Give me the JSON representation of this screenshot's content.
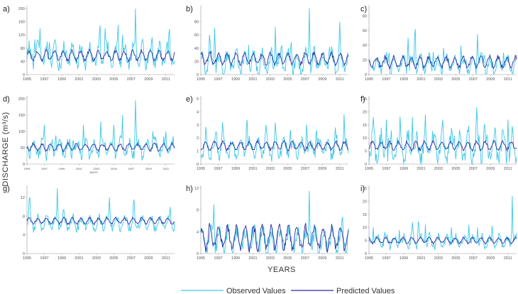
{
  "figure": {
    "ylabel": "DISCHARGE (m³/s)",
    "xlabel": "YEARS",
    "legend": [
      {
        "name": "Observed Values",
        "color": "#3cc8e8"
      },
      {
        "name": "Predicted Values",
        "color": "#2a2a9c"
      }
    ]
  },
  "chart_data": [
    {
      "type": "line",
      "label": "a)",
      "ylim": [
        0,
        200
      ],
      "yticks": [
        0,
        40,
        80,
        120,
        160,
        200
      ],
      "xticks": [
        "1995",
        "1997",
        "1999",
        "2001",
        "2003",
        "2005",
        "2007",
        "2009",
        "2011"
      ],
      "observed": {
        "base": 55,
        "amp": 28,
        "peaks": [
          [
            1995.9,
            120
          ],
          [
            1996.5,
            140
          ],
          [
            1997.6,
            110
          ],
          [
            2000.3,
            95
          ],
          [
            2003.4,
            160
          ],
          [
            2004.0,
            140
          ],
          [
            2005.5,
            150
          ],
          [
            2006.0,
            120
          ],
          [
            2007.5,
            200
          ],
          [
            2008.3,
            110
          ],
          [
            2009.4,
            120
          ],
          [
            2011.4,
            150
          ]
        ]
      },
      "predicted": {
        "base": 58,
        "amp": 14
      }
    },
    {
      "type": "line",
      "label": "b)",
      "ylim": [
        0,
        100
      ],
      "yticks": [
        0,
        20,
        40,
        60,
        80
      ],
      "xticks": [
        "1995",
        "1997",
        "1999",
        "2001",
        "2003",
        "2005",
        "2007",
        "2009",
        "2011"
      ],
      "observed": {
        "base": 18,
        "amp": 14,
        "peaks": [
          [
            1996.0,
            60
          ],
          [
            1996.6,
            80
          ],
          [
            2000.5,
            45
          ],
          [
            2003.6,
            85
          ],
          [
            2004.3,
            50
          ],
          [
            2005.4,
            55
          ],
          [
            2007.5,
            100
          ],
          [
            2009.8,
            55
          ],
          [
            2011.0,
            80
          ]
        ]
      },
      "predicted": {
        "base": 24,
        "amp": 8
      }
    },
    {
      "type": "line",
      "label": "c)",
      "ylim": [
        0,
        90
      ],
      "yticks": [
        0,
        20,
        40,
        60,
        80
      ],
      "xticks": [
        "1995",
        "1997",
        "1999",
        "2001",
        "2003",
        "2005",
        "2007",
        "2009",
        "2011"
      ],
      "observed": {
        "base": 14,
        "amp": 10,
        "peaks": [
          [
            1997.3,
            40
          ],
          [
            1999.5,
            50
          ],
          [
            2000.3,
            85
          ],
          [
            2002.4,
            35
          ],
          [
            2003.6,
            40
          ],
          [
            2005.6,
            45
          ],
          [
            2007.5,
            55
          ],
          [
            2008.3,
            35
          ],
          [
            2010.5,
            30
          ]
        ]
      },
      "predicted": {
        "base": 17,
        "amp": 7
      }
    },
    {
      "type": "line",
      "label": "d)",
      "ylim": [
        0,
        200
      ],
      "yticks": [
        0,
        50,
        100,
        150,
        200
      ],
      "xticks": [
        "1995",
        "1997",
        "1999",
        "2001",
        "2003",
        "2005",
        "2007",
        "2009",
        "2011"
      ],
      "xlabel": "ANOS",
      "observed": {
        "base": 48,
        "amp": 22,
        "peaks": [
          [
            1997.0,
            120
          ],
          [
            1998.3,
            110
          ],
          [
            2000.3,
            95
          ],
          [
            2001.5,
            120
          ],
          [
            2003.5,
            130
          ],
          [
            2005.0,
            120
          ],
          [
            2006.0,
            150
          ],
          [
            2007.5,
            195
          ],
          [
            2009.5,
            100
          ],
          [
            2011.0,
            100
          ]
        ]
      },
      "predicted": {
        "base": 52,
        "amp": 10
      }
    },
    {
      "type": "line",
      "label": "e)",
      "ylim": [
        0,
        5
      ],
      "yticks": [
        0,
        1,
        2,
        3,
        4,
        5
      ],
      "xticks": [
        "1995",
        "1997",
        "1999",
        "2001",
        "2003",
        "2005",
        "2007",
        "2009",
        "2011"
      ],
      "observed": {
        "base": 1.2,
        "amp": 0.6,
        "peaks": [
          [
            1995.6,
            3.0
          ],
          [
            1996.8,
            2.8
          ],
          [
            1997.5,
            3.2
          ],
          [
            2000.3,
            4.4
          ],
          [
            2002.5,
            3.0
          ],
          [
            2003.6,
            3.4
          ],
          [
            2005.3,
            3.0
          ],
          [
            2007.2,
            3.8
          ],
          [
            2008.3,
            3.2
          ],
          [
            2010.5,
            2.8
          ],
          [
            2011.5,
            3.8
          ]
        ]
      },
      "predicted": {
        "base": 1.4,
        "amp": 0.3
      }
    },
    {
      "type": "line",
      "label": "f)",
      "ylim": [
        0,
        25
      ],
      "yticks": [
        0,
        5,
        10,
        15,
        20,
        25
      ],
      "xticks": [
        "1995",
        "1997",
        "1999",
        "2001",
        "2003",
        "2005",
        "2007",
        "2009",
        "2011"
      ],
      "observed": {
        "base": 6,
        "amp": 5,
        "peaks": [
          [
            1995.5,
            18
          ],
          [
            1997.0,
            17
          ],
          [
            1998.6,
            19
          ],
          [
            2000.0,
            18
          ],
          [
            2001.5,
            19
          ],
          [
            2003.5,
            17
          ],
          [
            2004.8,
            14
          ],
          [
            2007.4,
            24
          ],
          [
            2008.3,
            17
          ],
          [
            2011.0,
            17
          ]
        ]
      },
      "predicted": {
        "base": 7,
        "amp": 1.5
      }
    },
    {
      "type": "line",
      "label": "g)",
      "ylim": [
        0,
        14
      ],
      "yticks": [
        0,
        4,
        8,
        12
      ],
      "xticks": [
        "1995",
        "1997",
        "1999",
        "2001",
        "2003",
        "2005",
        "2007",
        "2009",
        "2011"
      ],
      "observed": {
        "base": 6.5,
        "amp": 1.2,
        "peaks": [
          [
            1995.3,
            14
          ],
          [
            1998.5,
            14
          ],
          [
            1999.2,
            10
          ],
          [
            2004.5,
            12
          ],
          [
            2007.3,
            13
          ],
          [
            2011.5,
            10
          ]
        ]
      },
      "predicted": {
        "base": 7,
        "amp": 0.6
      }
    },
    {
      "type": "line",
      "label": "h)",
      "ylim": [
        0,
        12
      ],
      "yticks": [
        0,
        4,
        8,
        12
      ],
      "xticks": [
        "1995",
        "1997",
        "1999",
        "2001",
        "2003",
        "2005",
        "2007",
        "2009",
        "2011"
      ],
      "observed": {
        "base": 2.4,
        "amp": 1.8,
        "peaks": [
          [
            1996.5,
            9
          ],
          [
            2007.5,
            11.5
          ],
          [
            2011.3,
            8
          ]
        ]
      },
      "predicted": {
        "base": 3.0,
        "amp": 2.0
      }
    },
    {
      "type": "line",
      "label": "i)",
      "ylim": [
        0,
        25
      ],
      "yticks": [
        0,
        5,
        10,
        15,
        20,
        25
      ],
      "xticks": [
        "1995",
        "1997",
        "1999",
        "2001",
        "2003",
        "2005",
        "2007",
        "2009",
        "2011"
      ],
      "observed": {
        "base": 4.5,
        "amp": 2.0,
        "peaks": [
          [
            1995.5,
            10
          ],
          [
            1996.8,
            9
          ],
          [
            1998.5,
            9
          ],
          [
            2000.0,
            12
          ],
          [
            2000.7,
            15
          ],
          [
            2001.5,
            11
          ],
          [
            2004.5,
            10
          ],
          [
            2006.5,
            11
          ],
          [
            2007.5,
            10
          ],
          [
            2009.2,
            12
          ],
          [
            2011.5,
            22
          ]
        ]
      },
      "predicted": {
        "base": 5,
        "amp": 1.0
      }
    }
  ]
}
